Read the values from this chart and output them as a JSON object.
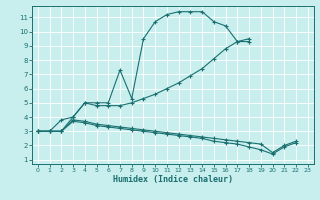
{
  "xlabel": "Humidex (Indice chaleur)",
  "bg_color": "#c8eeee",
  "line_color": "#1a7070",
  "grid_color": "#ffffff",
  "xlim": [
    -0.5,
    23.5
  ],
  "ylim": [
    0.7,
    11.8
  ],
  "xticks": [
    0,
    1,
    2,
    3,
    4,
    5,
    6,
    7,
    8,
    9,
    10,
    11,
    12,
    13,
    14,
    15,
    16,
    17,
    18,
    19,
    20,
    21,
    22,
    23
  ],
  "yticks": [
    1,
    2,
    3,
    4,
    5,
    6,
    7,
    8,
    9,
    10,
    11
  ],
  "line1_x": [
    0,
    1,
    2,
    3,
    4,
    5,
    6,
    7,
    8,
    9,
    10,
    11,
    12,
    13,
    14,
    15,
    16,
    17,
    18
  ],
  "line1_y": [
    3,
    3,
    3,
    4,
    5,
    5,
    5,
    7.3,
    5.3,
    9.5,
    10.7,
    11.2,
    11.4,
    11.4,
    11.4,
    10.7,
    10.4,
    9.3,
    9.3
  ],
  "line2_x": [
    0,
    1,
    2,
    3,
    4,
    5,
    6,
    7,
    8,
    9,
    10,
    11,
    12,
    13,
    14,
    15,
    16,
    17,
    18
  ],
  "line2_y": [
    3,
    3,
    3.8,
    4,
    5,
    4.8,
    4.8,
    4.8,
    5.0,
    5.3,
    5.6,
    6.0,
    6.4,
    6.9,
    7.4,
    8.1,
    8.8,
    9.3,
    9.5
  ],
  "line3_x": [
    0,
    1,
    2,
    3,
    4,
    5,
    6,
    7,
    8,
    9,
    10,
    11,
    12,
    13,
    14,
    15,
    16,
    17,
    18,
    19,
    20,
    21,
    22
  ],
  "line3_y": [
    3,
    3,
    3,
    3.8,
    3.7,
    3.5,
    3.4,
    3.3,
    3.2,
    3.1,
    3.0,
    2.9,
    2.8,
    2.7,
    2.6,
    2.5,
    2.4,
    2.3,
    2.2,
    2.1,
    1.5,
    2.0,
    2.3
  ],
  "line4_x": [
    0,
    1,
    2,
    3,
    4,
    5,
    6,
    7,
    8,
    9,
    10,
    11,
    12,
    13,
    14,
    15,
    16,
    17,
    18,
    19,
    20,
    21,
    22
  ],
  "line4_y": [
    3,
    3,
    3,
    3.7,
    3.6,
    3.4,
    3.3,
    3.2,
    3.1,
    3.0,
    2.9,
    2.8,
    2.7,
    2.6,
    2.5,
    2.3,
    2.2,
    2.1,
    1.9,
    1.7,
    1.4,
    1.9,
    2.2
  ]
}
